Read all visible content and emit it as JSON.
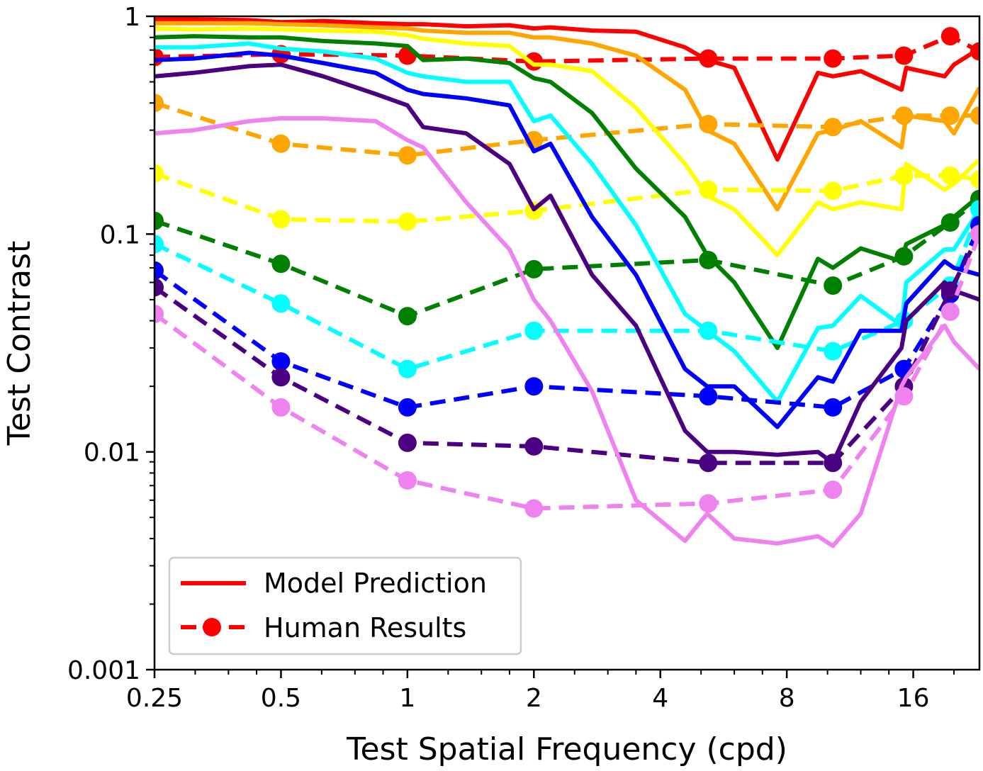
{
  "chart_data": {
    "type": "line",
    "title": "",
    "xlabel": "Test Spatial Frequency (cpd)",
    "ylabel": "Test Contrast",
    "x_scale": "log2",
    "y_scale": "log10",
    "xlim": [
      0.25,
      23
    ],
    "ylim": [
      0.001,
      1
    ],
    "x_ticks": [
      0.25,
      0.5,
      1,
      2,
      4,
      8,
      16
    ],
    "x_tick_labels": [
      "0.25",
      "0.5",
      "1",
      "2",
      "4",
      "8",
      "16"
    ],
    "y_ticks": [
      0.001,
      0.01,
      0.1,
      1
    ],
    "y_tick_labels": [
      "0.001",
      "0.01",
      "0.1",
      "1"
    ],
    "grid": false,
    "legend": {
      "position": "bottom-left",
      "entries": [
        {
          "label": "Model Prediction",
          "style": "solid",
          "color": "#ff0000"
        },
        {
          "label": "Human Results",
          "style": "dashed-marker",
          "color": "#ff0000"
        }
      ]
    },
    "model_x": [
      0.25,
      0.31,
      0.42,
      0.5,
      0.63,
      0.84,
      1,
      1.09,
      1.38,
      1.75,
      2,
      2.19,
      2.75,
      3.5,
      4.58,
      5.17,
      6,
      7.6,
      9.49,
      10.3,
      12,
      15,
      15.4,
      19,
      20,
      23
    ],
    "human_x": [
      0.25,
      0.5,
      1,
      2,
      5.2,
      10.3,
      15.2,
      19.6,
      23
    ],
    "series": [
      {
        "color": "#ff0000",
        "model": [
          0.97,
          0.97,
          0.96,
          0.94,
          0.95,
          0.93,
          0.92,
          0.92,
          0.9,
          0.91,
          0.88,
          0.89,
          0.86,
          0.85,
          0.72,
          0.63,
          0.58,
          0.22,
          0.55,
          0.53,
          0.56,
          0.46,
          0.58,
          0.53,
          0.6,
          0.71
        ],
        "human": [
          0.65,
          0.67,
          0.66,
          0.62,
          0.64,
          0.64,
          0.66,
          0.81,
          0.69
        ]
      },
      {
        "color": "#ffa500",
        "model": [
          0.93,
          0.93,
          0.93,
          0.92,
          0.91,
          0.89,
          0.88,
          0.86,
          0.84,
          0.84,
          0.8,
          0.8,
          0.75,
          0.66,
          0.46,
          0.3,
          0.26,
          0.13,
          0.29,
          0.3,
          0.33,
          0.25,
          0.35,
          0.33,
          0.29,
          0.47
        ],
        "human": [
          0.4,
          0.26,
          0.23,
          0.27,
          0.32,
          0.31,
          0.35,
          0.35,
          0.35
        ]
      },
      {
        "color": "#ffff00",
        "model": [
          0.88,
          0.87,
          0.88,
          0.87,
          0.86,
          0.85,
          0.82,
          0.79,
          0.75,
          0.73,
          0.6,
          0.6,
          0.56,
          0.38,
          0.21,
          0.15,
          0.13,
          0.08,
          0.14,
          0.13,
          0.14,
          0.13,
          0.21,
          0.16,
          0.17,
          0.22
        ],
        "human": [
          0.19,
          0.117,
          0.114,
          0.128,
          0.16,
          0.158,
          0.185,
          0.186,
          0.178
        ]
      },
      {
        "color": "#008000",
        "model": [
          0.8,
          0.81,
          0.8,
          0.8,
          0.77,
          0.75,
          0.73,
          0.63,
          0.64,
          0.61,
          0.52,
          0.5,
          0.36,
          0.2,
          0.12,
          0.08,
          0.06,
          0.03,
          0.077,
          0.07,
          0.086,
          0.075,
          0.09,
          0.11,
          0.12,
          0.15
        ],
        "human": [
          0.115,
          0.073,
          0.042,
          0.069,
          0.076,
          0.058,
          0.079,
          0.113,
          0.145
        ]
      },
      {
        "color": "#00ffff",
        "model": [
          0.72,
          0.72,
          0.75,
          0.71,
          0.69,
          0.64,
          0.55,
          0.53,
          0.5,
          0.5,
          0.33,
          0.35,
          0.21,
          0.11,
          0.043,
          0.036,
          0.029,
          0.017,
          0.037,
          0.038,
          0.052,
          0.038,
          0.06,
          0.085,
          0.085,
          0.13
        ],
        "human": [
          0.09,
          0.048,
          0.024,
          0.036,
          0.036,
          0.029,
          0.04,
          0.058,
          0.13
        ]
      },
      {
        "color": "#0000ff",
        "model": [
          0.63,
          0.64,
          0.68,
          0.66,
          0.61,
          0.55,
          0.46,
          0.44,
          0.42,
          0.39,
          0.24,
          0.26,
          0.12,
          0.065,
          0.024,
          0.02,
          0.02,
          0.013,
          0.022,
          0.021,
          0.036,
          0.036,
          0.048,
          0.075,
          0.07,
          0.065
        ],
        "human": [
          0.068,
          0.026,
          0.016,
          0.02,
          0.018,
          0.016,
          0.024,
          0.053,
          0.11
        ]
      },
      {
        "color": "#4b0082",
        "model": [
          0.53,
          0.55,
          0.59,
          0.6,
          0.53,
          0.44,
          0.39,
          0.31,
          0.29,
          0.21,
          0.13,
          0.15,
          0.065,
          0.038,
          0.0125,
          0.01,
          0.01,
          0.0097,
          0.01,
          0.0089,
          0.017,
          0.03,
          0.04,
          0.06,
          0.055,
          0.05
        ],
        "human": [
          0.057,
          0.022,
          0.011,
          0.0106,
          0.0089,
          0.0089,
          0.02,
          0.055,
          0.1
        ]
      },
      {
        "color": "#ee82ee",
        "model": [
          0.29,
          0.3,
          0.33,
          0.34,
          0.34,
          0.33,
          0.27,
          0.25,
          0.14,
          0.085,
          0.05,
          0.04,
          0.019,
          0.006,
          0.0039,
          0.0052,
          0.004,
          0.0038,
          0.0041,
          0.0037,
          0.0052,
          0.02,
          0.022,
          0.038,
          0.032,
          0.024
        ],
        "human": [
          0.043,
          0.016,
          0.0074,
          0.0055,
          0.0058,
          0.0067,
          0.018,
          0.044,
          0.1
        ]
      }
    ]
  }
}
